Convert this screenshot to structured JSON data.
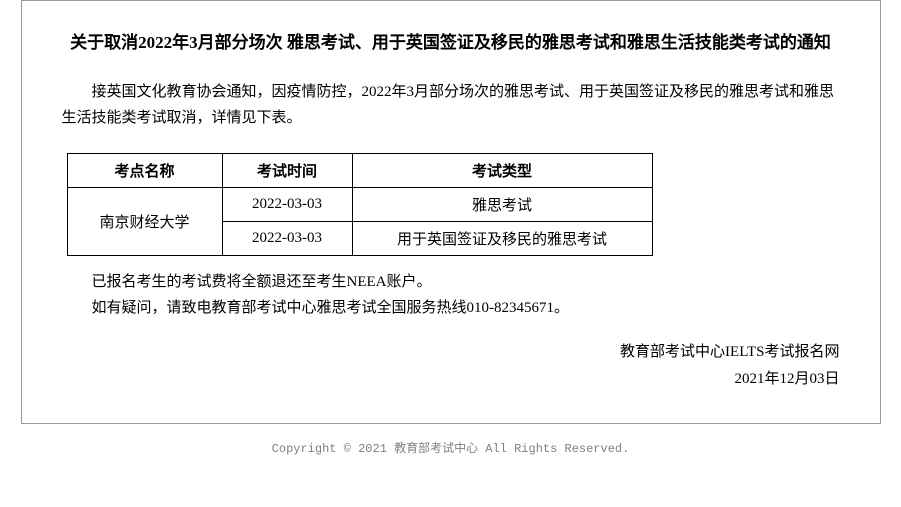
{
  "title": "关于取消2022年3月部分场次 雅思考试、用于英国签证及移民的雅思考试和雅思生活技能类考试的通知",
  "intro": "接英国文化教育协会通知，因疫情防控，2022年3月部分场次的雅思考试、用于英国签证及移民的雅思考试和雅思生活技能类考试取消，详情见下表。",
  "table": {
    "headers": {
      "venue": "考点名称",
      "date": "考试时间",
      "type": "考试类型"
    },
    "venue": "南京财经大学",
    "rows": [
      {
        "date": "2022-03-03",
        "type": "雅思考试"
      },
      {
        "date": "2022-03-03",
        "type": "用于英国签证及移民的雅思考试"
      }
    ]
  },
  "notes": {
    "refund": "已报名考生的考试费将全额退还至考生NEEA账户。",
    "contact": "如有疑问，请致电教育部考试中心雅思考试全国服务热线010-82345671。"
  },
  "signature": {
    "org": "教育部考试中心IELTS考试报名网",
    "date": "2021年12月03日"
  },
  "footer": "Copyright © 2021 教育部考试中心 All Rights Reserved."
}
